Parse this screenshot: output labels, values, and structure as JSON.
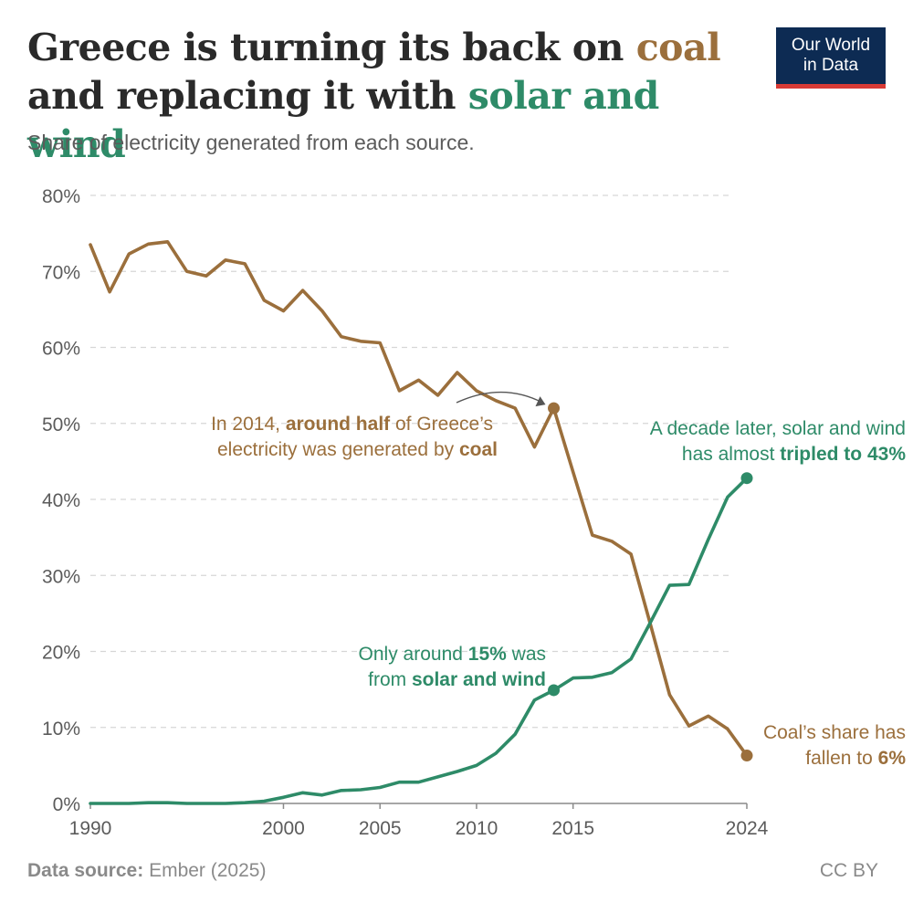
{
  "header": {
    "title_part1": "Greece is turning its back on ",
    "title_coal": "coal",
    "title_part2": "and replacing it with ",
    "title_solar": "solar and wind",
    "subtitle": "Share of electricity generated from each source."
  },
  "logo": {
    "line1": "Our World",
    "line2": "in Data"
  },
  "footer": {
    "source_label": "Data source:",
    "source_value": "Ember (2025)",
    "license": "CC BY"
  },
  "colors": {
    "coal": "#9b6f3c",
    "solar_wind": "#2e8b68",
    "text": "#2a2a2a"
  },
  "chart_data": {
    "type": "line",
    "title": "Greece is turning its back on coal and replacing it with solar and wind",
    "subtitle": "Share of electricity generated from each source.",
    "xlim": [
      1990,
      2024
    ],
    "ylim": [
      0,
      80
    ],
    "y_ticks": [
      0,
      10,
      20,
      30,
      40,
      50,
      60,
      70,
      80
    ],
    "y_tick_labels": [
      "0%",
      "10%",
      "20%",
      "30%",
      "40%",
      "50%",
      "60%",
      "70%",
      "80%"
    ],
    "x_ticks": [
      1990,
      2000,
      2005,
      2010,
      2015,
      2024
    ],
    "x_tick_labels": [
      "1990",
      "2000",
      "2005",
      "2010",
      "2015",
      "2024"
    ],
    "grid": true,
    "series": [
      {
        "name": "Coal",
        "color": "#9b6f3c",
        "x": [
          1990,
          1991,
          1992,
          1993,
          1994,
          1995,
          1996,
          1997,
          1998,
          1999,
          2000,
          2001,
          2002,
          2003,
          2004,
          2005,
          2006,
          2007,
          2008,
          2009,
          2010,
          2011,
          2012,
          2013,
          2014,
          2015,
          2016,
          2017,
          2018,
          2019,
          2020,
          2021,
          2022,
          2023,
          2024
        ],
        "values": [
          73.5,
          67.3,
          72.3,
          73.6,
          73.9,
          70.0,
          69.4,
          71.5,
          71.0,
          66.2,
          64.8,
          67.5,
          64.8,
          61.4,
          60.8,
          60.6,
          54.3,
          55.7,
          53.7,
          56.7,
          54.3,
          53.0,
          52.0,
          46.9,
          52.0,
          43.6,
          35.3,
          34.5,
          32.8,
          23.6,
          14.3,
          10.2,
          11.5,
          9.8,
          6.3
        ]
      },
      {
        "name": "Solar and wind",
        "color": "#2e8b68",
        "x": [
          1990,
          1991,
          1992,
          1993,
          1994,
          1995,
          1996,
          1997,
          1998,
          1999,
          2000,
          2001,
          2002,
          2003,
          2004,
          2005,
          2006,
          2007,
          2008,
          2009,
          2010,
          2011,
          2012,
          2013,
          2014,
          2015,
          2016,
          2017,
          2018,
          2019,
          2020,
          2021,
          2022,
          2023,
          2024
        ],
        "values": [
          0.0,
          0.0,
          0.0,
          0.1,
          0.1,
          0.0,
          0.0,
          0.0,
          0.1,
          0.3,
          0.8,
          1.4,
          1.1,
          1.7,
          1.8,
          2.1,
          2.8,
          2.8,
          3.5,
          4.2,
          5.0,
          6.6,
          9.1,
          13.6,
          14.9,
          16.5,
          16.6,
          17.2,
          19.0,
          23.8,
          28.7,
          28.8,
          34.7,
          40.3,
          42.8
        ]
      }
    ],
    "highlight_points": [
      {
        "series": "Coal",
        "x": 2014,
        "y": 52.0
      },
      {
        "series": "Coal",
        "x": 2024,
        "y": 6.3
      },
      {
        "series": "Solar and wind",
        "x": 2014,
        "y": 14.9
      },
      {
        "series": "Solar and wind",
        "x": 2024,
        "y": 42.8
      }
    ],
    "annotations": {
      "coal_2014": {
        "line1_pre": "In 2014, ",
        "line1_bold": "around half",
        "line1_post": " of Greece’s",
        "line2_pre": "electricity was generated by ",
        "line2_bold": "coal"
      },
      "solar_2024": {
        "line1": "A decade later, solar and wind",
        "line2_pre": "has almost ",
        "line2_bold": "tripled to 43%"
      },
      "solar_2014": {
        "line1_pre": "Only around ",
        "line1_bold": "15%",
        "line1_post": " was",
        "line2_pre": "from ",
        "line2_bold": "solar and wind"
      },
      "coal_2024": {
        "line1": "Coal’s share has",
        "line2_pre": "fallen to ",
        "line2_bold": "6%"
      }
    }
  }
}
